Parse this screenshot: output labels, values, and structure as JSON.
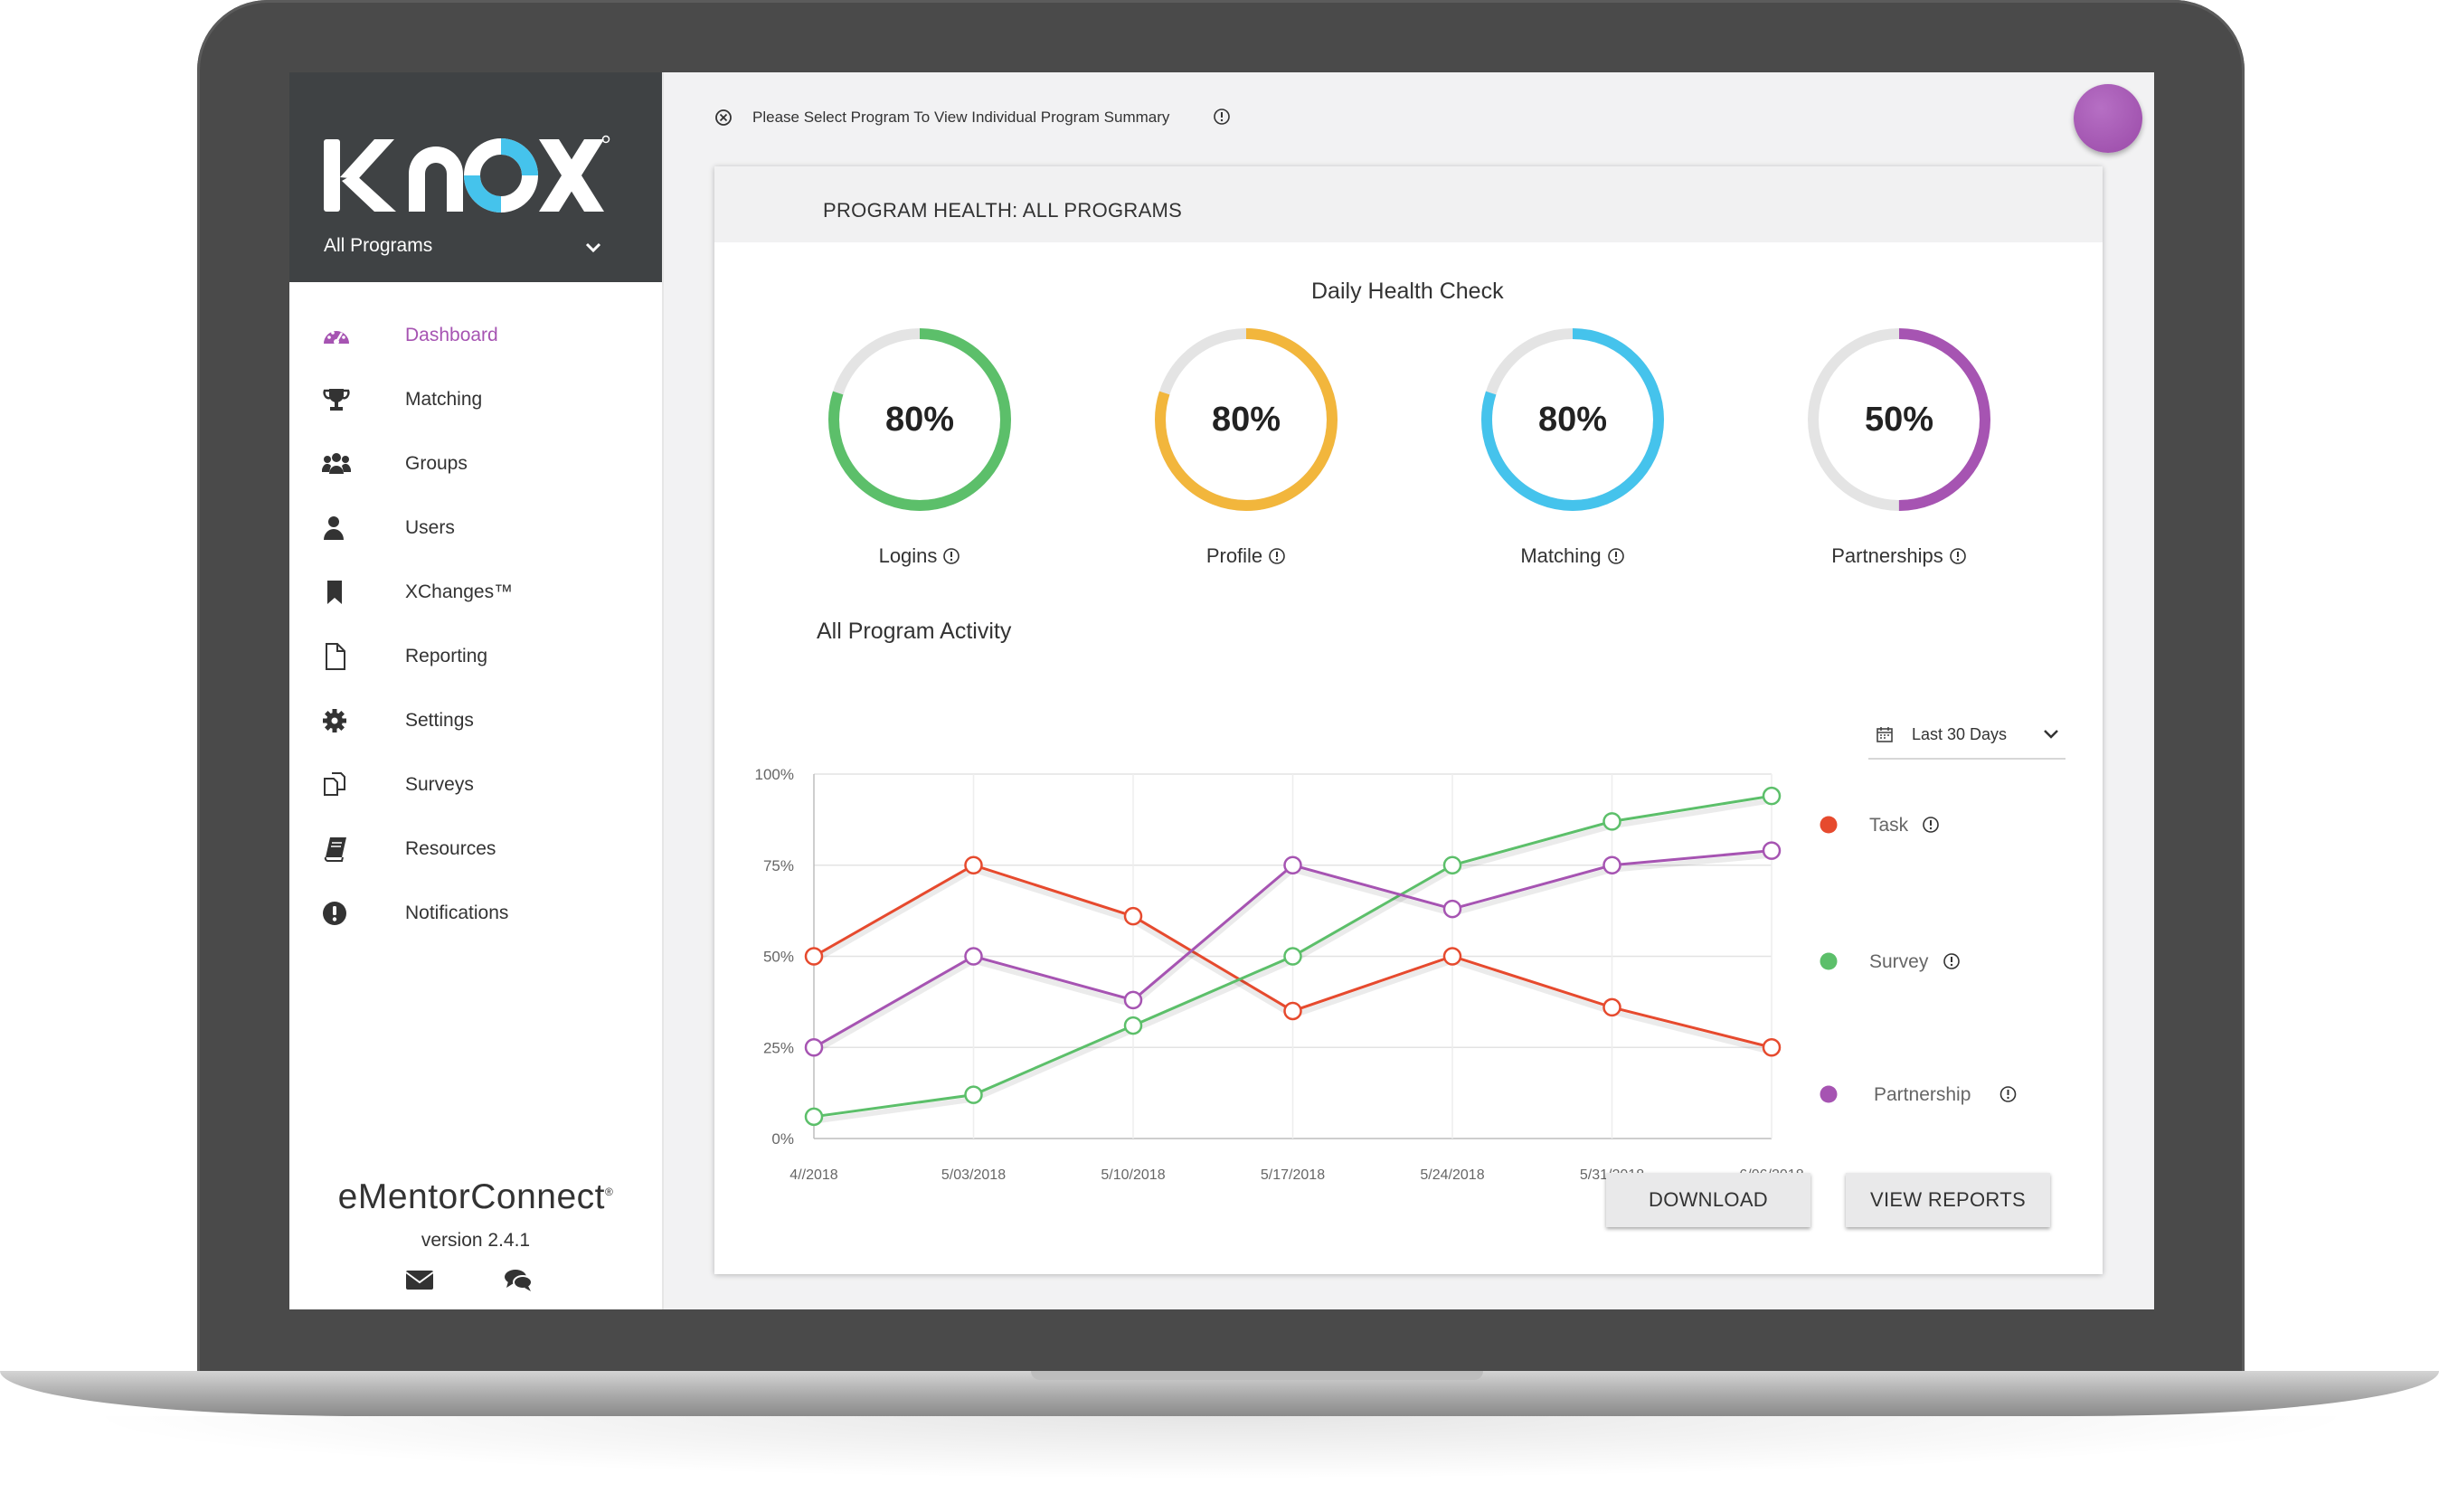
{
  "sidebar": {
    "logo_text": "KNOX",
    "program_select": "All Programs",
    "items": [
      {
        "label": "Dashboard",
        "icon": "dashboard-icon",
        "active": true
      },
      {
        "label": "Matching",
        "icon": "trophy-icon"
      },
      {
        "label": "Groups",
        "icon": "groups-icon"
      },
      {
        "label": "Users",
        "icon": "user-icon"
      },
      {
        "label": "XChanges™",
        "icon": "bookmark-icon"
      },
      {
        "label": "Reporting",
        "icon": "document-icon"
      },
      {
        "label": "Settings",
        "icon": "gear-icon"
      },
      {
        "label": "Surveys",
        "icon": "surveys-icon"
      },
      {
        "label": "Resources",
        "icon": "book-icon"
      },
      {
        "label": "Notifications",
        "icon": "alert-icon"
      }
    ],
    "brand": "eMentorConnect",
    "version": "version 2.4.1"
  },
  "topbar": {
    "message": "Please Select Program To View Individual Program Summary"
  },
  "card": {
    "title": "PROGRAM HEALTH: ALL PROGRAMS",
    "health_title": "Daily Health Check",
    "gauges": [
      {
        "label": "Logins",
        "value_text": "80%",
        "value": 0.8,
        "color": "#5cbf6a"
      },
      {
        "label": "Profile",
        "value_text": "80%",
        "value": 0.8,
        "color": "#f2b63c"
      },
      {
        "label": "Matching",
        "value_text": "80%",
        "value": 0.8,
        "color": "#45c3ec"
      },
      {
        "label": "Partnerships",
        "value_text": "50%",
        "value": 0.5,
        "color": "#a654b2"
      }
    ],
    "activity_title": "All Program Activity",
    "range_select": "Last 30 Days",
    "buttons": {
      "download": "DOWNLOAD",
      "view_reports": "VIEW REPORTS"
    }
  },
  "colors": {
    "accent": "#a654b2",
    "sidebar_header": "#3f4244",
    "task": "#e64a2e",
    "survey": "#5cbf6a",
    "partnership": "#a654b2"
  },
  "chart_data": {
    "type": "line",
    "categories": [
      "4//2018",
      "5/03/2018",
      "5/10/2018",
      "5/17/2018",
      "5/24/2018",
      "5/31/2018",
      "6/06/2018"
    ],
    "y_ticks": [
      "100%",
      "75%",
      "50%",
      "25%",
      "0%"
    ],
    "ylim": [
      0,
      100
    ],
    "grid": true,
    "legend_position": "right",
    "series": [
      {
        "name": "Task",
        "color": "#e64a2e",
        "values": [
          50,
          75,
          61,
          35,
          50,
          36,
          25
        ]
      },
      {
        "name": "Survey",
        "color": "#5cbf6a",
        "values": [
          6,
          12,
          31,
          50,
          75,
          87,
          94
        ]
      },
      {
        "name": "Partnership",
        "color": "#a654b2",
        "values": [
          25,
          50,
          38,
          75,
          63,
          75,
          79
        ]
      }
    ]
  }
}
